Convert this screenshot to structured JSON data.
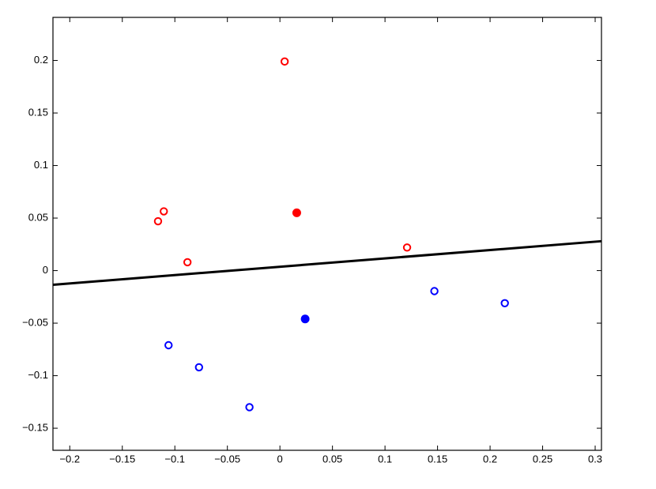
{
  "chart_data": {
    "type": "scatter",
    "xlim": [
      -0.216,
      0.306
    ],
    "ylim": [
      -0.171,
      0.241
    ],
    "xticks": [
      {
        "value": -0.2,
        "label": "−0.2"
      },
      {
        "value": -0.15,
        "label": "−0.15"
      },
      {
        "value": -0.1,
        "label": "−0.1"
      },
      {
        "value": -0.05,
        "label": "−0.05"
      },
      0,
      0.05,
      0.1,
      0.15,
      0.2,
      0.25,
      0.3
    ],
    "yticks": [
      {
        "value": -0.15,
        "label": "−0.15"
      },
      {
        "value": -0.1,
        "label": "−0.1"
      },
      {
        "value": -0.05,
        "label": "−0.05"
      },
      0,
      0.05,
      0.1,
      0.15,
      0.2
    ],
    "series": [
      {
        "color": "#ff0000",
        "filled": false,
        "x": [
          0.0045,
          -0.1105,
          -0.116,
          -0.088,
          0.121
        ],
        "values": [
          0.199,
          0.0564,
          0.047,
          0.008,
          0.022
        ]
      },
      {
        "color": "#ff0000",
        "filled": true,
        "x": [
          0.016
        ],
        "values": [
          0.055
        ]
      },
      {
        "color": "#0000ff",
        "filled": false,
        "x": [
          0.147,
          0.214,
          -0.106,
          -0.077,
          -0.029
        ],
        "values": [
          -0.0195,
          -0.031,
          -0.071,
          -0.092,
          -0.13
        ]
      },
      {
        "color": "#0000ff",
        "filled": true,
        "x": [
          0.024
        ],
        "values": [
          -0.046
        ]
      }
    ],
    "line": {
      "color": "#000000",
      "x": [
        -0.216,
        0.306
      ],
      "values": [
        -0.0135,
        0.028
      ]
    }
  }
}
